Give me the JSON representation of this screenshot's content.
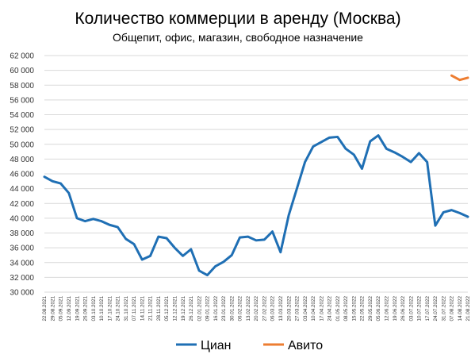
{
  "chart_data": {
    "type": "line",
    "title": "Количество коммерции в аренду (Москва)",
    "subtitle": "Общепит, офис, магазин, свободное назначение",
    "xlabel": "",
    "ylabel": "",
    "ylim": [
      30000,
      62000
    ],
    "y_ticks": [
      30000,
      32000,
      34000,
      36000,
      38000,
      40000,
      42000,
      44000,
      46000,
      48000,
      50000,
      52000,
      54000,
      56000,
      58000,
      60000,
      62000
    ],
    "y_tick_labels": [
      "30 000",
      "32 000",
      "34 000",
      "36 000",
      "38 000",
      "40 000",
      "42 000",
      "44 000",
      "46 000",
      "48 000",
      "50 000",
      "52 000",
      "54 000",
      "56 000",
      "58 000",
      "60 000",
      "62 000"
    ],
    "grid": true,
    "legend_position": "bottom",
    "x": [
      "22.08.2021",
      "29.08.2021",
      "05.09.2021",
      "12.09.2021",
      "19.09.2021",
      "26.09.2021",
      "03.10.2021",
      "10.10.2021",
      "17.10.2021",
      "24.10.2021",
      "31.10.2021",
      "07.11.2021",
      "14.11.2021",
      "21.11.2021",
      "28.11.2021",
      "05.12.2021",
      "12.12.2021",
      "19.12.2021",
      "26.12.2021",
      "02.01.2022",
      "09.01.2022",
      "16.01.2022",
      "23.01.2022",
      "30.01.2022",
      "06.02.2022",
      "13.02.2022",
      "20.02.2022",
      "27.02.2022",
      "06.03.2022",
      "13.03.2022",
      "20.03.2022",
      "27.03.2022",
      "03.04.2022",
      "10.04.2022",
      "17.04.2022",
      "24.04.2022",
      "01.05.2022",
      "08.05.2022",
      "15.05.2022",
      "22.05.2022",
      "29.05.2022",
      "05.06.2022",
      "12.06.2022",
      "19.06.2022",
      "26.06.2022",
      "03.07.2022",
      "10.07.2022",
      "17.07.2022",
      "24.07.2022",
      "31.07.2022",
      "07.08.2022",
      "14.08.2022",
      "21.08.2022"
    ],
    "series": [
      {
        "name": "Циан",
        "color": "#1f6fb4",
        "values": [
          45600,
          45000,
          44700,
          43400,
          40000,
          39600,
          39900,
          39600,
          39100,
          38800,
          37200,
          36500,
          34400,
          34900,
          37500,
          37300,
          36000,
          34900,
          35800,
          32900,
          32300,
          33500,
          34100,
          35000,
          37400,
          37500,
          37000,
          37100,
          38200,
          35400,
          40400,
          44000,
          47600,
          49700,
          50300,
          50900,
          51000,
          49400,
          48600,
          46700,
          50400,
          51200,
          49400,
          48900,
          48300,
          47600,
          48800,
          47600,
          39000,
          40800,
          41100,
          40700,
          40200
        ]
      },
      {
        "name": "Авито",
        "color": "#ed7d31",
        "values": [
          null,
          null,
          null,
          null,
          null,
          null,
          null,
          null,
          null,
          null,
          null,
          null,
          null,
          null,
          null,
          null,
          null,
          null,
          null,
          null,
          null,
          null,
          null,
          null,
          null,
          null,
          null,
          null,
          null,
          null,
          null,
          null,
          null,
          null,
          null,
          null,
          null,
          null,
          null,
          null,
          null,
          null,
          null,
          null,
          null,
          null,
          null,
          null,
          null,
          null,
          59300,
          58700,
          59000
        ]
      }
    ]
  }
}
